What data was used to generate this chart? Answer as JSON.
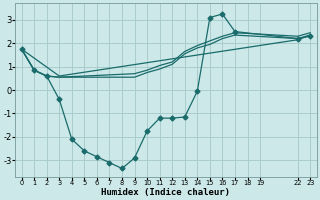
{
  "bg_color": "#cce8e8",
  "grid_color": "#aacccc",
  "line_color": "#1a6b6b",
  "xlabel": "Humidex (Indice chaleur)",
  "xlim": [
    -0.5,
    23.5
  ],
  "ylim": [
    -3.7,
    3.7
  ],
  "yticks": [
    -3,
    -2,
    -1,
    0,
    1,
    2,
    3
  ],
  "ytick_labels": [
    "-3",
    "-2",
    "-1",
    "0",
    "1",
    "2",
    "3"
  ],
  "xtick_positions": [
    0,
    1,
    2,
    3,
    4,
    5,
    6,
    7,
    8,
    9,
    10,
    11,
    12,
    13,
    14,
    15,
    16,
    17,
    18,
    19,
    22,
    23
  ],
  "xtick_labels": [
    "0",
    "1",
    "2",
    "3",
    "4",
    "5",
    "6",
    "7",
    "8",
    "9",
    "10",
    "11",
    "12",
    "13",
    "14",
    "15",
    "16",
    "17",
    "18",
    "19",
    "22",
    "23"
  ],
  "curve1_x": [
    0,
    1,
    2,
    3,
    4,
    5,
    6,
    7,
    8,
    9,
    10,
    11,
    12,
    13,
    14,
    15,
    16,
    17,
    22,
    23
  ],
  "curve1_y": [
    1.75,
    0.85,
    0.6,
    -0.4,
    -2.1,
    -2.6,
    -2.85,
    -3.1,
    -3.35,
    -2.9,
    -1.75,
    -1.2,
    -1.2,
    -1.15,
    -0.05,
    3.1,
    3.25,
    2.5,
    2.2,
    2.3
  ],
  "curve2_x": [
    0,
    1,
    2,
    3,
    9,
    10,
    11,
    12,
    13,
    14,
    15,
    16,
    17,
    22,
    23
  ],
  "curve2_y": [
    1.75,
    0.85,
    0.6,
    0.55,
    0.55,
    0.75,
    0.9,
    1.1,
    1.55,
    1.8,
    1.95,
    2.2,
    2.35,
    2.2,
    2.35
  ],
  "curve3_x": [
    0,
    1,
    2,
    3,
    9,
    10,
    11,
    12,
    13,
    14,
    15,
    16,
    17,
    22,
    23
  ],
  "curve3_y": [
    1.75,
    0.85,
    0.6,
    0.55,
    0.7,
    0.85,
    1.05,
    1.2,
    1.65,
    1.9,
    2.1,
    2.3,
    2.45,
    2.3,
    2.45
  ],
  "curve4_x": [
    0,
    3,
    22,
    23
  ],
  "curve4_y": [
    1.75,
    0.6,
    2.15,
    2.35
  ]
}
